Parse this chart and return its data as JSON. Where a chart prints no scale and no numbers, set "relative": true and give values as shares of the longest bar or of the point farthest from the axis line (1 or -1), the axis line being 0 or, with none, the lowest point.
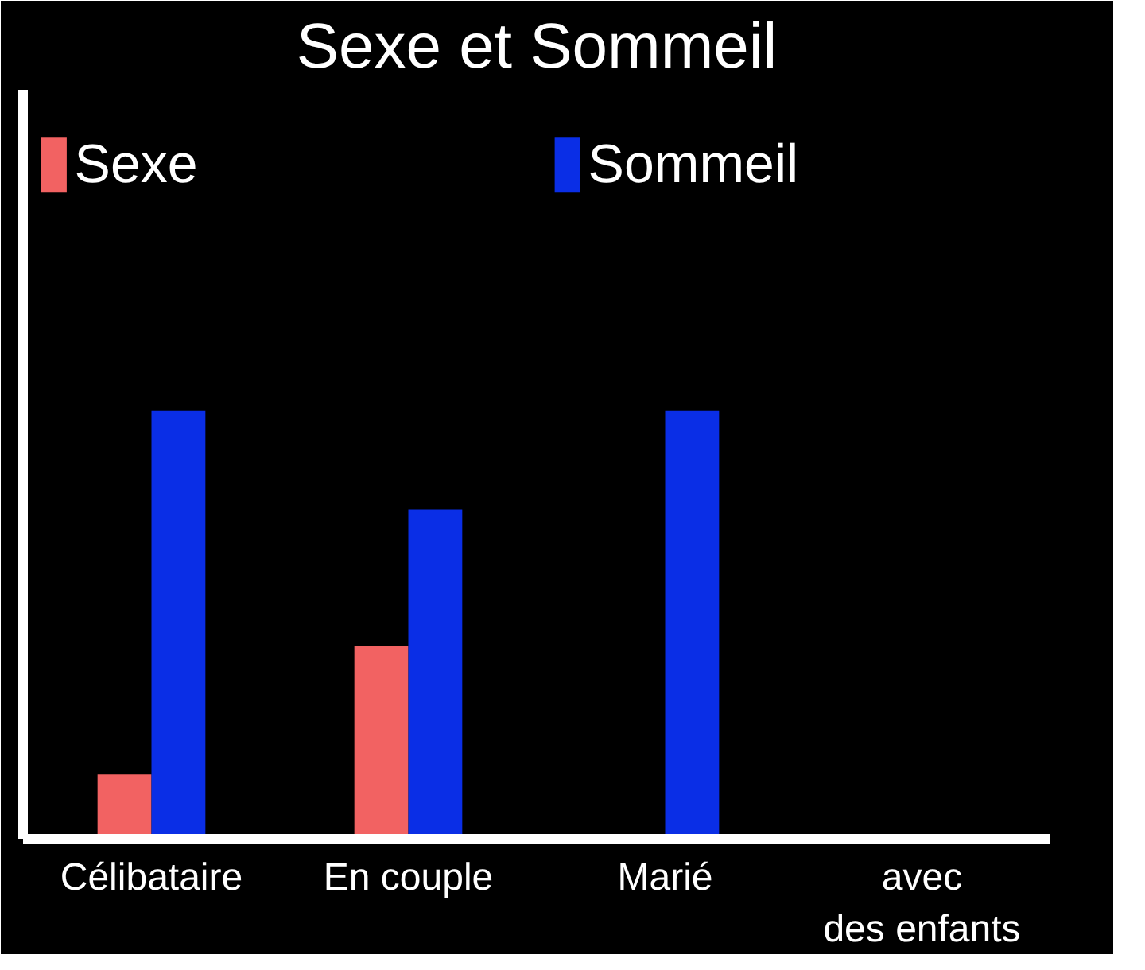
{
  "chart_data": {
    "type": "bar",
    "title": "Sexe et Sommeil",
    "relative": true,
    "categories": [
      "Célibataire",
      "En couple",
      "Marié",
      "avec\ndes enfants"
    ],
    "series": [
      {
        "name": "Sexe",
        "color": "#f26262",
        "values": [
          0.15,
          0.45,
          0,
          0
        ]
      },
      {
        "name": "Sommeil",
        "color": "#0a2ee6",
        "values": [
          1,
          0.77,
          1,
          0
        ]
      }
    ],
    "legend": "top"
  }
}
